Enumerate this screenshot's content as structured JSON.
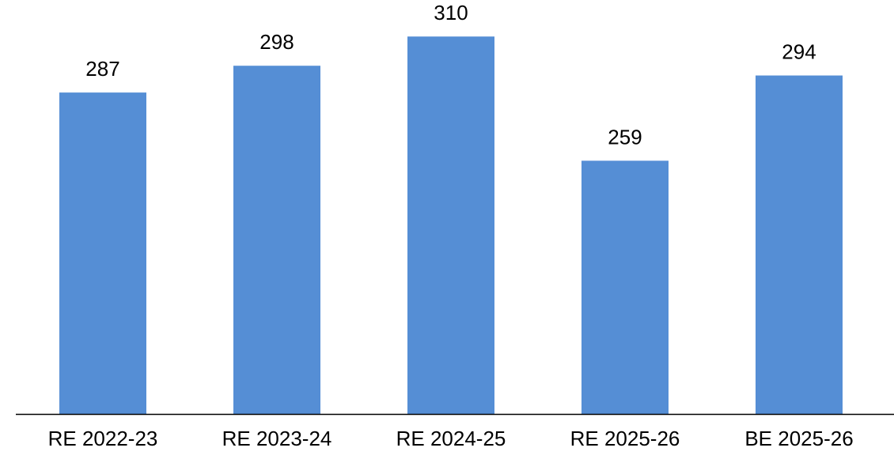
{
  "chart_data": {
    "type": "bar",
    "categories": [
      "RE 2022-23",
      "RE 2023-24",
      "RE 2024-25",
      "RE 2025-26",
      "BE 2025-26"
    ],
    "values": [
      287,
      298,
      310,
      259,
      294
    ],
    "color": "#558ed5",
    "ylim": [
      155,
      325
    ]
  }
}
